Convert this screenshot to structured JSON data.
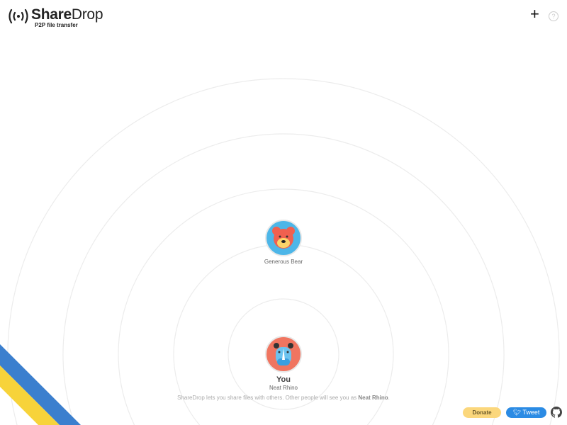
{
  "app": {
    "brand_bold": "Share",
    "brand_rest": "Drop",
    "tagline": "P2P file transfer"
  },
  "header": {
    "add_icon": "plus-icon",
    "help_label": "?"
  },
  "peers": [
    {
      "name": "Generous Bear",
      "avatar": "bear-avatar",
      "color": "#4db6e8"
    }
  ],
  "me": {
    "label": "You",
    "name": "Neat Rhino",
    "avatar": "rhino-avatar",
    "color": "#f07560"
  },
  "info": {
    "text": "ShareDrop lets you share files with others. Other people will see you as ",
    "name": "Neat Rhino",
    "end": "."
  },
  "footer": {
    "donate": "Donate",
    "tweet": "Tweet",
    "github_icon": "github-icon"
  },
  "colors": {
    "ribbon_blue": "#3b7fce",
    "ribbon_yellow": "#f7d33a",
    "donate": "#fbd77c",
    "tweet": "#2b8be4"
  }
}
